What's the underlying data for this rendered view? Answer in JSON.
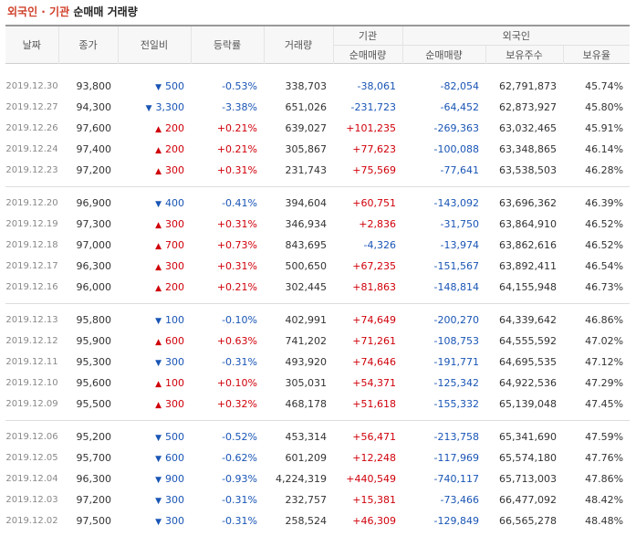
{
  "title": {
    "accent": "외국인 · 기관",
    "rest": "순매매 거래량"
  },
  "colors": {
    "up": "#d0000a",
    "down": "#1955b5",
    "accent": "#d0402a"
  },
  "headers": {
    "date": "날짜",
    "close": "종가",
    "change": "전일비",
    "rate": "등락률",
    "volume": "거래량",
    "institution": "기관",
    "foreign": "외국인",
    "inst_net": "순매매량",
    "foreign_net": "순매매량",
    "holdings": "보유주수",
    "ratio": "보유율"
  },
  "groups": [
    [
      {
        "date": "2019.12.30",
        "close": "93,800",
        "dir": "down",
        "change": "500",
        "rate": "-0.53%",
        "volume": "338,703",
        "inst": "-38,061",
        "foreign": "-82,054",
        "holdings": "62,791,873",
        "ratio": "45.74%"
      },
      {
        "date": "2019.12.27",
        "close": "94,300",
        "dir": "down",
        "change": "3,300",
        "rate": "-3.38%",
        "volume": "651,026",
        "inst": "-231,723",
        "foreign": "-64,452",
        "holdings": "62,873,927",
        "ratio": "45.80%"
      },
      {
        "date": "2019.12.26",
        "close": "97,600",
        "dir": "up",
        "change": "200",
        "rate": "+0.21%",
        "volume": "639,027",
        "inst": "+101,235",
        "foreign": "-269,363",
        "holdings": "63,032,465",
        "ratio": "45.91%"
      },
      {
        "date": "2019.12.24",
        "close": "97,400",
        "dir": "up",
        "change": "200",
        "rate": "+0.21%",
        "volume": "305,867",
        "inst": "+77,623",
        "foreign": "-100,088",
        "holdings": "63,348,865",
        "ratio": "46.14%"
      },
      {
        "date": "2019.12.23",
        "close": "97,200",
        "dir": "up",
        "change": "300",
        "rate": "+0.31%",
        "volume": "231,743",
        "inst": "+75,569",
        "foreign": "-77,641",
        "holdings": "63,538,503",
        "ratio": "46.28%"
      }
    ],
    [
      {
        "date": "2019.12.20",
        "close": "96,900",
        "dir": "down",
        "change": "400",
        "rate": "-0.41%",
        "volume": "394,604",
        "inst": "+60,751",
        "foreign": "-143,092",
        "holdings": "63,696,362",
        "ratio": "46.39%"
      },
      {
        "date": "2019.12.19",
        "close": "97,300",
        "dir": "up",
        "change": "300",
        "rate": "+0.31%",
        "volume": "346,934",
        "inst": "+2,836",
        "foreign": "-31,750",
        "holdings": "63,864,910",
        "ratio": "46.52%"
      },
      {
        "date": "2019.12.18",
        "close": "97,000",
        "dir": "up",
        "change": "700",
        "rate": "+0.73%",
        "volume": "843,695",
        "inst": "-4,326",
        "foreign": "-13,974",
        "holdings": "63,862,616",
        "ratio": "46.52%"
      },
      {
        "date": "2019.12.17",
        "close": "96,300",
        "dir": "up",
        "change": "300",
        "rate": "+0.31%",
        "volume": "500,650",
        "inst": "+67,235",
        "foreign": "-151,567",
        "holdings": "63,892,411",
        "ratio": "46.54%"
      },
      {
        "date": "2019.12.16",
        "close": "96,000",
        "dir": "up",
        "change": "200",
        "rate": "+0.21%",
        "volume": "302,445",
        "inst": "+81,863",
        "foreign": "-148,814",
        "holdings": "64,155,948",
        "ratio": "46.73%"
      }
    ],
    [
      {
        "date": "2019.12.13",
        "close": "95,800",
        "dir": "down",
        "change": "100",
        "rate": "-0.10%",
        "volume": "402,991",
        "inst": "+74,649",
        "foreign": "-200,270",
        "holdings": "64,339,642",
        "ratio": "46.86%"
      },
      {
        "date": "2019.12.12",
        "close": "95,900",
        "dir": "up",
        "change": "600",
        "rate": "+0.63%",
        "volume": "741,202",
        "inst": "+71,261",
        "foreign": "-108,753",
        "holdings": "64,555,592",
        "ratio": "47.02%"
      },
      {
        "date": "2019.12.11",
        "close": "95,300",
        "dir": "down",
        "change": "300",
        "rate": "-0.31%",
        "volume": "493,920",
        "inst": "+74,646",
        "foreign": "-191,771",
        "holdings": "64,695,535",
        "ratio": "47.12%"
      },
      {
        "date": "2019.12.10",
        "close": "95,600",
        "dir": "up",
        "change": "100",
        "rate": "+0.10%",
        "volume": "305,031",
        "inst": "+54,371",
        "foreign": "-125,342",
        "holdings": "64,922,536",
        "ratio": "47.29%"
      },
      {
        "date": "2019.12.09",
        "close": "95,500",
        "dir": "up",
        "change": "300",
        "rate": "+0.32%",
        "volume": "468,178",
        "inst": "+51,618",
        "foreign": "-155,332",
        "holdings": "65,139,048",
        "ratio": "47.45%"
      }
    ],
    [
      {
        "date": "2019.12.06",
        "close": "95,200",
        "dir": "down",
        "change": "500",
        "rate": "-0.52%",
        "volume": "453,314",
        "inst": "+56,471",
        "foreign": "-213,758",
        "holdings": "65,341,690",
        "ratio": "47.59%"
      },
      {
        "date": "2019.12.05",
        "close": "95,700",
        "dir": "down",
        "change": "600",
        "rate": "-0.62%",
        "volume": "601,209",
        "inst": "+12,248",
        "foreign": "-117,969",
        "holdings": "65,574,180",
        "ratio": "47.76%"
      },
      {
        "date": "2019.12.04",
        "close": "96,300",
        "dir": "down",
        "change": "900",
        "rate": "-0.93%",
        "volume": "4,224,319",
        "inst": "+440,549",
        "foreign": "-740,117",
        "holdings": "65,713,003",
        "ratio": "47.86%"
      },
      {
        "date": "2019.12.03",
        "close": "97,200",
        "dir": "down",
        "change": "300",
        "rate": "-0.31%",
        "volume": "232,757",
        "inst": "+15,381",
        "foreign": "-73,466",
        "holdings": "66,477,092",
        "ratio": "48.42%"
      },
      {
        "date": "2019.12.02",
        "close": "97,500",
        "dir": "down",
        "change": "300",
        "rate": "-0.31%",
        "volume": "258,524",
        "inst": "+46,309",
        "foreign": "-129,849",
        "holdings": "66,565,278",
        "ratio": "48.48%"
      }
    ]
  ]
}
